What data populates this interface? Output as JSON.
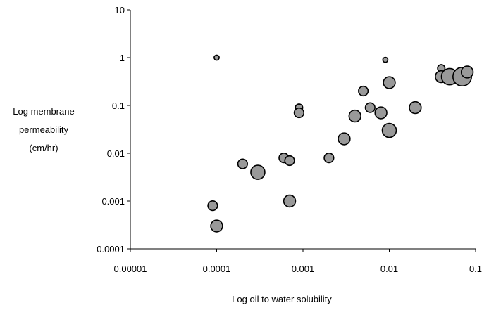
{
  "chart_data": {
    "type": "scatter",
    "title": "",
    "xlabel": "Log oil to water solubility",
    "ylabel_lines": [
      "Log membrane",
      "permeability",
      "(cm/hr)"
    ],
    "x_scale": "log",
    "y_scale": "log",
    "xlim": [
      1e-05,
      0.1
    ],
    "ylim": [
      0.0001,
      10
    ],
    "x_ticks": [
      "0.00001",
      "0.0001",
      "0.001",
      "0.01",
      "0.1"
    ],
    "y_ticks": [
      "10",
      "1",
      "0.1",
      "0.01",
      "0.001",
      "0.0001"
    ],
    "grid": false,
    "legend": "none",
    "marker_color": "#999999",
    "marker_edge": "#000000",
    "points": [
      {
        "x": 0.0001,
        "y": 1.0,
        "size": 1
      },
      {
        "x": 9e-05,
        "y": 0.0008,
        "size": 3
      },
      {
        "x": 0.0001,
        "y": 0.0003,
        "size": 4
      },
      {
        "x": 0.0002,
        "y": 0.006,
        "size": 3
      },
      {
        "x": 0.0003,
        "y": 0.004,
        "size": 5
      },
      {
        "x": 0.0006,
        "y": 0.008,
        "size": 3
      },
      {
        "x": 0.0007,
        "y": 0.007,
        "size": 3
      },
      {
        "x": 0.0007,
        "y": 0.001,
        "size": 4
      },
      {
        "x": 0.0009,
        "y": 0.09,
        "size": 2
      },
      {
        "x": 0.0009,
        "y": 0.07,
        "size": 3
      },
      {
        "x": 0.002,
        "y": 0.008,
        "size": 3
      },
      {
        "x": 0.003,
        "y": 0.02,
        "size": 4
      },
      {
        "x": 0.004,
        "y": 0.06,
        "size": 4
      },
      {
        "x": 0.005,
        "y": 0.2,
        "size": 3
      },
      {
        "x": 0.006,
        "y": 0.09,
        "size": 3
      },
      {
        "x": 0.008,
        "y": 0.07,
        "size": 4
      },
      {
        "x": 0.009,
        "y": 0.9,
        "size": 1
      },
      {
        "x": 0.01,
        "y": 0.3,
        "size": 4
      },
      {
        "x": 0.01,
        "y": 0.03,
        "size": 5
      },
      {
        "x": 0.02,
        "y": 0.09,
        "size": 4
      },
      {
        "x": 0.04,
        "y": 0.6,
        "size": 2
      },
      {
        "x": 0.04,
        "y": 0.4,
        "size": 4
      },
      {
        "x": 0.05,
        "y": 0.4,
        "size": 6
      },
      {
        "x": 0.07,
        "y": 0.4,
        "size": 7
      },
      {
        "x": 0.08,
        "y": 0.5,
        "size": 4
      }
    ]
  }
}
